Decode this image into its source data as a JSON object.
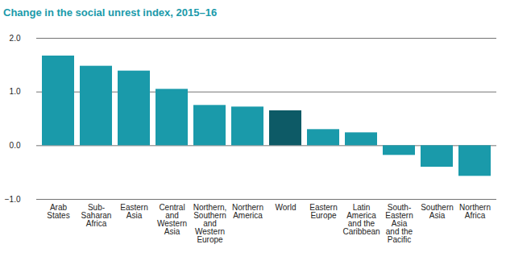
{
  "chart_data": {
    "type": "bar",
    "title": "Change in the social unrest index, 2015–16",
    "categories": [
      "Arab\nStates",
      "Sub-\nSaharan\nAfrica",
      "Eastern\nAsia",
      "Central\nand\nWestern\nAsia",
      "Northern,\nSouthern\nand\nWestern\nEurope",
      "Northern\nAmerica",
      "World",
      "Eastern\nEurope",
      "Latin\nAmerica\nand the\nCaribbean",
      "South-\nEastern\nAsia\nand the\nPacific",
      "Southern\nAsia",
      "Northern\nAfrica"
    ],
    "values": [
      1.67,
      1.48,
      1.39,
      1.05,
      0.75,
      0.72,
      0.65,
      0.3,
      0.24,
      -0.18,
      -0.4,
      -0.57
    ],
    "colors": [
      "#1a9aaa",
      "#1a9aaa",
      "#1a9aaa",
      "#1a9aaa",
      "#1a9aaa",
      "#1a9aaa",
      "#0d5a66",
      "#1a9aaa",
      "#1a9aaa",
      "#1a9aaa",
      "#1a9aaa",
      "#1a9aaa"
    ],
    "ylim": [
      -1,
      2
    ],
    "yticks": [
      -1,
      0,
      1,
      2
    ],
    "grid": true
  }
}
